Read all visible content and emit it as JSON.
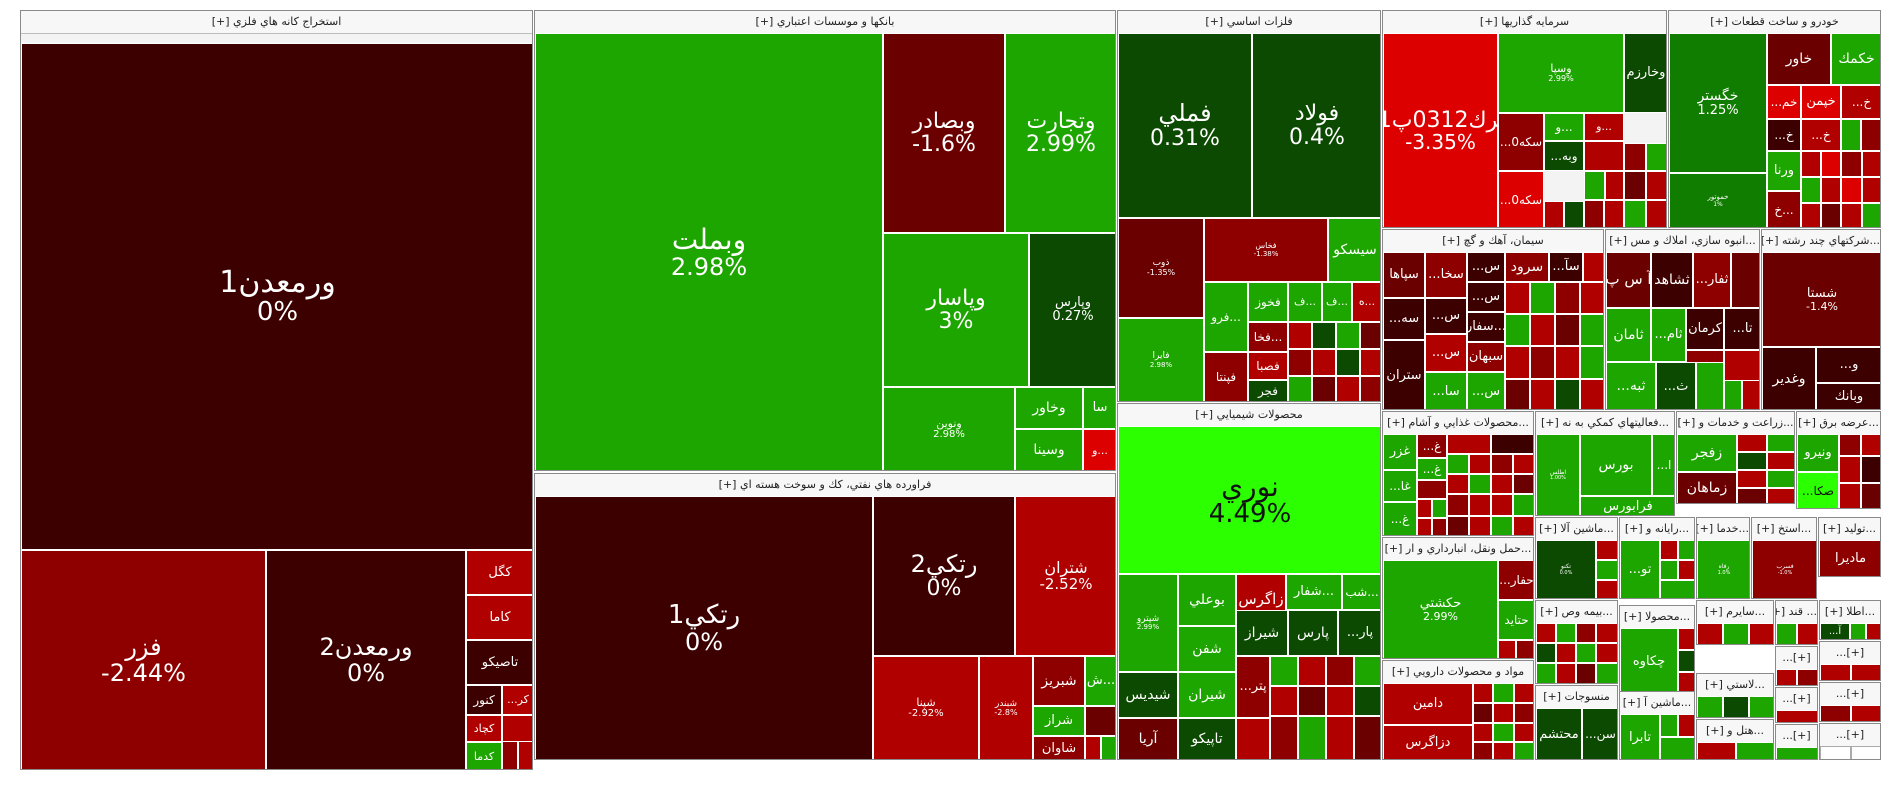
{
  "colors": {
    "dark_maroon": "#3d0000",
    "maroon": "#6b0000",
    "dark_red": "#8e0000",
    "red": "#b00000",
    "bright_red": "#dd0000",
    "dark_green": "#0b4a00",
    "green": "#117d00",
    "bright_green": "#1ea600",
    "lime": "#2bff00"
  },
  "sections": [
    {
      "title": "استخراج كانه هاي فلزي [+]",
      "cells": [
        {
          "name": "ورمعدن1",
          "pct": "0%"
        },
        {
          "name": "فزر",
          "pct": "-2.44%"
        },
        {
          "name": "ورمعدن2",
          "pct": "0%"
        },
        {
          "name": "كگل",
          "pct": ""
        },
        {
          "name": "كاما",
          "pct": ""
        },
        {
          "name": "تاصيكو",
          "pct": ""
        },
        {
          "name": "كنور",
          "pct": ""
        },
        {
          "name": "...كر",
          "pct": ""
        },
        {
          "name": "كچاد",
          "pct": ""
        },
        {
          "name": "كدما",
          "pct": ""
        }
      ]
    },
    {
      "title": "بانكها و موسسات اعتباري [+]",
      "cells": [
        {
          "name": "وبملت",
          "pct": "2.98%"
        },
        {
          "name": "وبصادر",
          "pct": "-1.6%"
        },
        {
          "name": "وتجارت",
          "pct": "2.99%"
        },
        {
          "name": "وپاسار",
          "pct": "3%"
        },
        {
          "name": "وپارس",
          "pct": "0.27%"
        },
        {
          "name": "ونوين",
          "pct": "2.98%"
        },
        {
          "name": "وخاور",
          "pct": ""
        },
        {
          "name": "سا",
          "pct": ""
        },
        {
          "name": "وسينا",
          "pct": ""
        },
        {
          "name": "و...",
          "pct": ""
        }
      ]
    },
    {
      "title": "فراورده هاي نفتي، كك و سوخت هسته اي [+]",
      "cells": [
        {
          "name": "رتكي1",
          "pct": "0%"
        },
        {
          "name": "رتكي2",
          "pct": "0%"
        },
        {
          "name": "شتران",
          "pct": "-2.52%"
        },
        {
          "name": "شپنا",
          "pct": "-2.92%"
        },
        {
          "name": "شبندر",
          "pct": "-2.8%"
        },
        {
          "name": "شبريز",
          "pct": ""
        },
        {
          "name": "ش...",
          "pct": ""
        },
        {
          "name": "شراز",
          "pct": ""
        },
        {
          "name": "شاوان",
          "pct": ""
        }
      ]
    },
    {
      "title": "فلزات اساسي [+]",
      "cells": [
        {
          "name": "فملي",
          "pct": "0.31%"
        },
        {
          "name": "فولاد",
          "pct": "0.4%"
        },
        {
          "name": "ذوب",
          "pct": "-1.35%"
        },
        {
          "name": "فخاس",
          "pct": "-1.38%"
        },
        {
          "name": "سيسكو",
          "pct": ""
        },
        {
          "name": "فايرا",
          "pct": "2.98%"
        },
        {
          "name": "فرو...",
          "pct": ""
        },
        {
          "name": "فخوز",
          "pct": ""
        },
        {
          "name": "فپنتا",
          "pct": ""
        },
        {
          "name": "فخا...",
          "pct": ""
        },
        {
          "name": "فصبا",
          "pct": ""
        },
        {
          "name": "فجر",
          "pct": ""
        },
        {
          "name": "ف...",
          "pct": ""
        },
        {
          "name": "ف...",
          "pct": ""
        },
        {
          "name": "ه...",
          "pct": ""
        }
      ]
    },
    {
      "title": "محصولات شيميايي [+]",
      "cells": [
        {
          "name": "نوري",
          "pct": "4.49%"
        },
        {
          "name": "شپترو",
          "pct": "2.99%"
        },
        {
          "name": "بوعلي",
          "pct": ""
        },
        {
          "name": "زاگرس",
          "pct": ""
        },
        {
          "name": "شفار...",
          "pct": ""
        },
        {
          "name": "شب...",
          "pct": ""
        },
        {
          "name": "شفن",
          "pct": ""
        },
        {
          "name": "شيراز",
          "pct": ""
        },
        {
          "name": "پارس",
          "pct": ""
        },
        {
          "name": "...پار",
          "pct": ""
        },
        {
          "name": "شيديس",
          "pct": ""
        },
        {
          "name": "شيران",
          "pct": ""
        },
        {
          "name": "...پتر",
          "pct": ""
        },
        {
          "name": "آريا",
          "pct": ""
        },
        {
          "name": "تاپيكو",
          "pct": ""
        }
      ]
    },
    {
      "title": "سرمايه گذاريها [+]",
      "cells": [
        {
          "name": "سرك0312پ01",
          "pct": "-3.35%"
        },
        {
          "name": "وسپا",
          "pct": "2.99%"
        },
        {
          "name": "وخارزم",
          "pct": ""
        },
        {
          "name": "...سكه0",
          "pct": ""
        },
        {
          "name": "و...",
          "pct": ""
        },
        {
          "name": "و...",
          "pct": ""
        },
        {
          "name": "...سكه0",
          "pct": ""
        },
        {
          "name": "...وبه",
          "pct": ""
        }
      ]
    },
    {
      "title": "خودرو و ساخت قطعات [+]",
      "cells": [
        {
          "name": "خگستر",
          "pct": "1.25%"
        },
        {
          "name": "خاور",
          "pct": ""
        },
        {
          "name": "خكمك",
          "pct": ""
        },
        {
          "name": "...خم",
          "pct": ""
        },
        {
          "name": "خپمن",
          "pct": ""
        },
        {
          "name": "...خ",
          "pct": ""
        },
        {
          "name": "...خ",
          "pct": ""
        },
        {
          "name": "...خ",
          "pct": ""
        },
        {
          "name": "ورنا",
          "pct": ""
        },
        {
          "name": "خ...",
          "pct": ""
        },
        {
          "name": "خموتور",
          "pct": "1%"
        }
      ]
    },
    {
      "title": "سيمان، آهك و گچ [+]",
      "cells": [
        {
          "name": "سپاها",
          "pct": ""
        },
        {
          "name": "...سخا",
          "pct": ""
        },
        {
          "name": "...س",
          "pct": ""
        },
        {
          "name": "سرود",
          "pct": ""
        },
        {
          "name": "...سآ",
          "pct": ""
        },
        {
          "name": "...سه",
          "pct": ""
        },
        {
          "name": "...س",
          "pct": ""
        },
        {
          "name": "...س",
          "pct": ""
        },
        {
          "name": "سفار...",
          "pct": ""
        },
        {
          "name": "...س",
          "pct": ""
        },
        {
          "name": "سبهان",
          "pct": ""
        },
        {
          "name": "ستران",
          "pct": ""
        },
        {
          "name": "...سا",
          "pct": ""
        },
        {
          "name": "...س",
          "pct": ""
        }
      ]
    },
    {
      "title": "...انبوه سازي، املاك و مس [+]",
      "cells": [
        {
          "name": "آ س پ",
          "pct": ""
        },
        {
          "name": "ثشاهد",
          "pct": ""
        },
        {
          "name": "...ثفار",
          "pct": ""
        },
        {
          "name": "ثامان",
          "pct": ""
        },
        {
          "name": "...ثام",
          "pct": ""
        },
        {
          "name": "كرمان",
          "pct": ""
        },
        {
          "name": "...تا",
          "pct": ""
        },
        {
          "name": "...ثبه",
          "pct": ""
        },
        {
          "name": "...ث",
          "pct": ""
        }
      ]
    },
    {
      "title": "...شركتهاي چند رشته [+]",
      "cells": [
        {
          "name": "شستا",
          "pct": "-1.4%"
        },
        {
          "name": "وغدير",
          "pct": ""
        },
        {
          "name": "...و",
          "pct": ""
        },
        {
          "name": "وبانك",
          "pct": ""
        }
      ]
    },
    {
      "title": "...محصولات غذايي و آشام [+]",
      "cells": [
        {
          "name": "غزر",
          "pct": ""
        },
        {
          "name": "...غ",
          "pct": ""
        },
        {
          "name": "...غا",
          "pct": ""
        },
        {
          "name": "...غ",
          "pct": ""
        },
        {
          "name": "...غ",
          "pct": ""
        }
      ]
    },
    {
      "title": "...فعاليتهاي كمكي به نه [+]",
      "cells": [
        {
          "name": "اطلس",
          "pct": "1.00%"
        },
        {
          "name": "بورس",
          "pct": ""
        },
        {
          "name": "...ا",
          "pct": ""
        },
        {
          "name": "فرابورس",
          "pct": ""
        }
      ]
    },
    {
      "title": "...زراعت و خدمات و [+]",
      "cells": [
        {
          "name": "زفجر",
          "pct": ""
        },
        {
          "name": "زماهان",
          "pct": ""
        }
      ]
    },
    {
      "title": "...عرضه برق [+]",
      "cells": [
        {
          "name": "ونيرو",
          "pct": ""
        },
        {
          "name": "...صكا",
          "pct": ""
        }
      ]
    },
    {
      "title": "...حمل ونقل، انبارداري و ار [+]",
      "cells": [
        {
          "name": "حكشتي",
          "pct": "2.99%"
        },
        {
          "name": "...حفار",
          "pct": ""
        },
        {
          "name": "حتايد",
          "pct": ""
        }
      ]
    },
    {
      "title": "...ماشين آلا [+]",
      "cells": [
        {
          "name": "تكنو",
          "pct": "0.0%"
        }
      ]
    },
    {
      "title": "...رايانه و [+]",
      "cells": [
        {
          "name": "...تو",
          "pct": ""
        }
      ]
    },
    {
      "title": "...خدما [+]",
      "cells": [
        {
          "name": "رفاه",
          "pct": "1.0%"
        }
      ]
    },
    {
      "title": "...استخ [+]",
      "cells": [
        {
          "name": "فسرب",
          "pct": "-1.0%"
        }
      ]
    },
    {
      "title": "...توليد [+]",
      "cells": [
        {
          "name": "مادیرا",
          "pct": ""
        }
      ]
    },
    {
      "title": "...بيمه وص [+]",
      "cells": []
    },
    {
      "title": "...محصولا [+]",
      "cells": [
        {
          "name": "چكاوه",
          "pct": ""
        }
      ]
    },
    {
      "title": "...سايرم [+]",
      "cells": []
    },
    {
      "title": "... قند [+]",
      "cells": []
    },
    {
      "title": "...اطلا [+]",
      "cells": [
        {
          "name": "...آ",
          "pct": ""
        }
      ]
    },
    {
      "title": "مواد و محصولات دارويي [+]",
      "cells": [
        {
          "name": "دامين",
          "pct": ""
        },
        {
          "name": "دزاگرس",
          "pct": ""
        }
      ]
    },
    {
      "title": "منسوجات [+]",
      "cells": [
        {
          "name": "محتشم",
          "pct": ""
        },
        {
          "name": "...سن",
          "pct": ""
        }
      ]
    },
    {
      "title": "...ماشين آ [+]",
      "cells": [
        {
          "name": "تابرا",
          "pct": ""
        }
      ]
    },
    {
      "title": "...لاستي [+]",
      "cells": []
    },
    {
      "title": "...هتل و [+]",
      "cells": []
    },
    {
      "title": "[+]...",
      "cells": []
    },
    {
      "title": "[+]...",
      "cells": []
    },
    {
      "title": "[+]...",
      "cells": []
    },
    {
      "title": "[+]...",
      "cells": []
    },
    {
      "title": "[+]...",
      "cells": []
    },
    {
      "title": "[+]...",
      "cells": []
    },
    {
      "title": "[+]...",
      "cells": []
    }
  ]
}
